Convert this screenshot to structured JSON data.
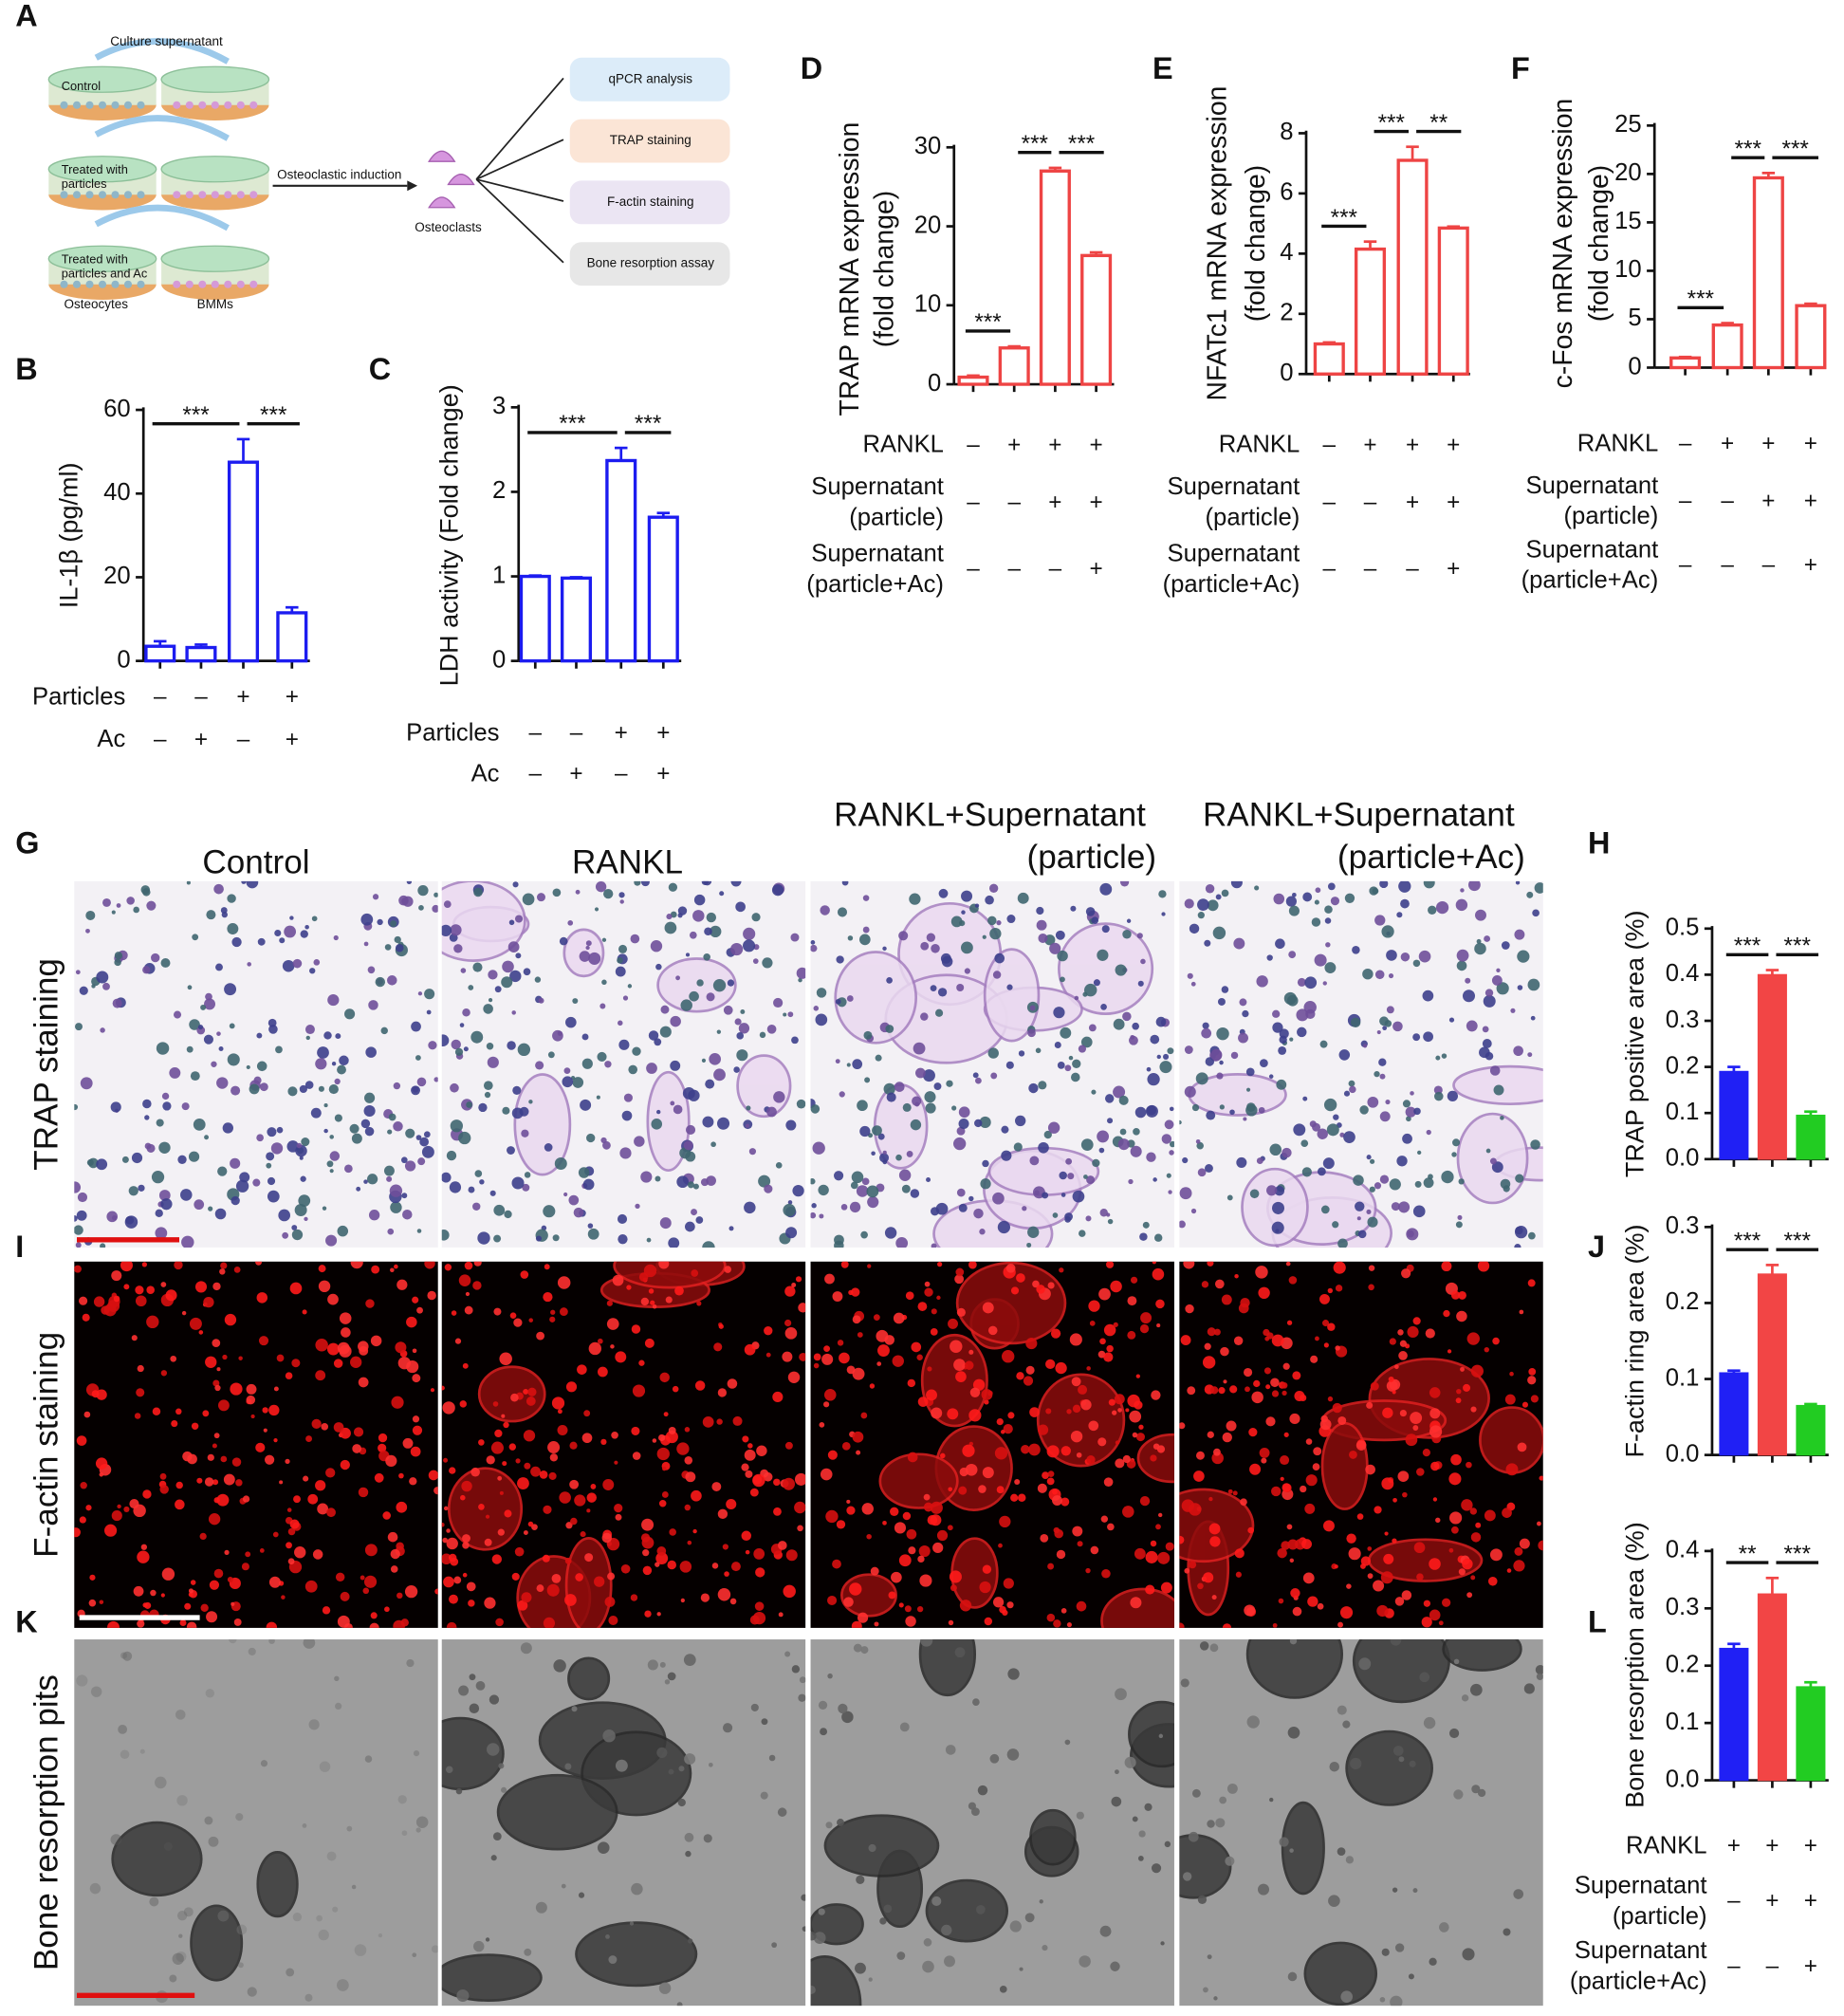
{
  "diagram": {
    "panel": "A",
    "header": "Culture supernatant",
    "dishes": [
      [
        "Control"
      ],
      [
        "Treated with",
        "particles"
      ],
      [
        "Treated with",
        "particles and Ac"
      ]
    ],
    "cell_labels": [
      "Osteocytes",
      "BMMs"
    ],
    "induction": "Osteoclastic  induction",
    "osteoclasts": "Osteoclasts",
    "assays": [
      "qPCR analysis",
      "TRAP staining",
      "F-actin staining",
      "Bone resorption assay"
    ]
  },
  "micrographs": {
    "panels": [
      "G",
      "I",
      "K"
    ],
    "columns": [
      [
        "Control"
      ],
      [
        "RANKL"
      ],
      [
        "RANKL+Supernatant",
        "(particle)"
      ],
      [
        "RANKL+Supernatant",
        "(particle+Ac)"
      ]
    ],
    "rows": [
      "TRAP staining",
      "F-actin staining",
      "Bone resorption pits"
    ]
  },
  "chart_data": [
    {
      "panel": "B",
      "type": "bar",
      "style": "outline",
      "color": "#1c1cf0",
      "ylabel": [
        "IL-1β (pg/ml)"
      ],
      "values": [
        3.5,
        3.2,
        47.5,
        11.5
      ],
      "errors": [
        1.2,
        0.7,
        5.5,
        1.3
      ],
      "ylim": [
        0,
        60
      ],
      "yticks": [
        0,
        20,
        40,
        60
      ],
      "significance": [
        {
          "between": [
            0,
            2
          ],
          "label": "***"
        },
        {
          "between": [
            2,
            3
          ],
          "label": "***"
        }
      ],
      "conditions": [
        {
          "name": [
            "Particles"
          ],
          "marks": [
            "–",
            "–",
            "+",
            "+"
          ]
        },
        {
          "name": [
            "Ac"
          ],
          "marks": [
            "–",
            "+",
            "–",
            "+"
          ]
        }
      ]
    },
    {
      "panel": "C",
      "type": "bar",
      "style": "outline",
      "color": "#1c1cf0",
      "ylabel": [
        "LDH activity (Fold change)"
      ],
      "values": [
        1.0,
        0.98,
        2.37,
        1.7
      ],
      "errors": [
        0.01,
        0.01,
        0.15,
        0.05
      ],
      "ylim": [
        0,
        3
      ],
      "yticks": [
        0,
        1,
        2,
        3
      ],
      "significance": [
        {
          "between": [
            0,
            2
          ],
          "label": "***"
        },
        {
          "between": [
            2,
            3
          ],
          "label": "***"
        }
      ],
      "conditions": [
        {
          "name": [
            "Particles"
          ],
          "marks": [
            "–",
            "–",
            "+",
            "+"
          ]
        },
        {
          "name": [
            "Ac"
          ],
          "marks": [
            "–",
            "+",
            "–",
            "+"
          ]
        }
      ]
    },
    {
      "panel": "D",
      "type": "bar",
      "style": "outline",
      "color": "#ee4444",
      "ylabel": [
        "TRAP mRNA expression",
        "(fold change)"
      ],
      "values": [
        0.9,
        4.6,
        27,
        16.3
      ],
      "errors": [
        0.2,
        0.2,
        0.4,
        0.4
      ],
      "ylim": [
        0,
        30
      ],
      "yticks": [
        0,
        10,
        20,
        30
      ],
      "significance": [
        {
          "between": [
            0,
            1
          ],
          "label": "***"
        },
        {
          "between": [
            1,
            2
          ],
          "label": "***"
        },
        {
          "between": [
            2,
            3
          ],
          "label": "***"
        }
      ],
      "conditions": [
        {
          "name": [
            "RANKL"
          ],
          "marks": [
            "–",
            "+",
            "+",
            "+"
          ]
        },
        {
          "name": [
            "Supernatant",
            "(particle)"
          ],
          "marks": [
            "–",
            "–",
            "+",
            "+"
          ]
        },
        {
          "name": [
            "Supernatant",
            "(particle+Ac)"
          ],
          "marks": [
            "–",
            "–",
            "–",
            "+"
          ]
        }
      ]
    },
    {
      "panel": "E",
      "type": "bar",
      "style": "outline",
      "color": "#ee4444",
      "ylabel": [
        "NFATc1 mRNA expression",
        "(fold change)"
      ],
      "values": [
        1.0,
        4.15,
        7.1,
        4.85
      ],
      "errors": [
        0.05,
        0.25,
        0.45,
        0.05
      ],
      "ylim": [
        0,
        8
      ],
      "yticks": [
        0,
        2,
        4,
        6,
        8
      ],
      "significance": [
        {
          "between": [
            0,
            1
          ],
          "label": "***"
        },
        {
          "between": [
            1,
            2
          ],
          "label": "***"
        },
        {
          "between": [
            2,
            3
          ],
          "label": "**"
        }
      ],
      "conditions": [
        {
          "name": [
            "RANKL"
          ],
          "marks": [
            "–",
            "+",
            "+",
            "+"
          ]
        },
        {
          "name": [
            "Supernatant",
            "(particle)"
          ],
          "marks": [
            "–",
            "–",
            "+",
            "+"
          ]
        },
        {
          "name": [
            "Supernatant",
            "(particle+Ac)"
          ],
          "marks": [
            "–",
            "–",
            "–",
            "+"
          ]
        }
      ]
    },
    {
      "panel": "F",
      "type": "bar",
      "style": "outline",
      "color": "#ee4444",
      "ylabel": [
        "c-Fos mRNA expression",
        "(fold change)"
      ],
      "values": [
        1.0,
        4.4,
        19.6,
        6.4
      ],
      "errors": [
        0.1,
        0.2,
        0.5,
        0.2
      ],
      "ylim": [
        0,
        25
      ],
      "yticks": [
        0,
        5,
        10,
        15,
        20,
        25
      ],
      "significance": [
        {
          "between": [
            0,
            1
          ],
          "label": "***"
        },
        {
          "between": [
            1,
            2
          ],
          "label": "***"
        },
        {
          "between": [
            2,
            3
          ],
          "label": "***"
        }
      ],
      "conditions": [
        {
          "name": [
            "RANKL"
          ],
          "marks": [
            "–",
            "+",
            "+",
            "+"
          ]
        },
        {
          "name": [
            "Supernatant",
            "(particle)"
          ],
          "marks": [
            "–",
            "–",
            "+",
            "+"
          ]
        },
        {
          "name": [
            "Supernatant",
            "(particle+Ac)"
          ],
          "marks": [
            "–",
            "–",
            "–",
            "+"
          ]
        }
      ]
    },
    {
      "panel": "H",
      "type": "bar",
      "style": "filled",
      "colors": [
        "#2020f5",
        "#f24545",
        "#22cc22"
      ],
      "ylabel": [
        "TRAP positive area (%)"
      ],
      "values": [
        0.19,
        0.4,
        0.095
      ],
      "errors": [
        0.01,
        0.01,
        0.008
      ],
      "ylim": [
        0,
        0.5
      ],
      "yticks": [
        {
          "value": 0,
          "label": "0.0"
        },
        0.1,
        0.2,
        0.3,
        0.4,
        0.5
      ],
      "significance": [
        {
          "between": [
            0,
            1
          ],
          "label": "***"
        },
        {
          "between": [
            1,
            2
          ],
          "label": "***"
        }
      ]
    },
    {
      "panel": "J",
      "type": "bar",
      "style": "filled",
      "colors": [
        "#2020f5",
        "#f24545",
        "#22cc22"
      ],
      "ylabel": [
        "F-actin ring area (%)"
      ],
      "values": [
        0.108,
        0.238,
        0.065
      ],
      "errors": [
        0.003,
        0.012,
        0.002
      ],
      "ylim": [
        0,
        0.3
      ],
      "yticks": [
        {
          "value": 0,
          "label": "0.0"
        },
        0.1,
        0.2,
        0.3
      ],
      "significance": [
        {
          "between": [
            0,
            1
          ],
          "label": "***"
        },
        {
          "between": [
            1,
            2
          ],
          "label": "***"
        }
      ]
    },
    {
      "panel": "L",
      "type": "bar",
      "style": "filled",
      "colors": [
        "#2020f5",
        "#f24545",
        "#22cc22"
      ],
      "ylabel": [
        "Bone resorption area (%)"
      ],
      "values": [
        0.23,
        0.325,
        0.163
      ],
      "errors": [
        0.008,
        0.028,
        0.008
      ],
      "ylim": [
        0,
        0.4
      ],
      "yticks": [
        {
          "value": 0,
          "label": "0.0"
        },
        0.1,
        0.2,
        0.3,
        0.4
      ],
      "significance": [
        {
          "between": [
            0,
            1
          ],
          "label": "**"
        },
        {
          "between": [
            1,
            2
          ],
          "label": "***"
        }
      ],
      "conditions": [
        {
          "name": [
            "RANKL"
          ],
          "marks": [
            "+",
            "+",
            "+"
          ]
        },
        {
          "name": [
            "Supernatant",
            "(particle)"
          ],
          "marks": [
            "–",
            "+",
            "+"
          ]
        },
        {
          "name": [
            "Supernatant",
            "(particle+Ac)"
          ],
          "marks": [
            "–",
            "–",
            "+"
          ]
        }
      ]
    }
  ]
}
